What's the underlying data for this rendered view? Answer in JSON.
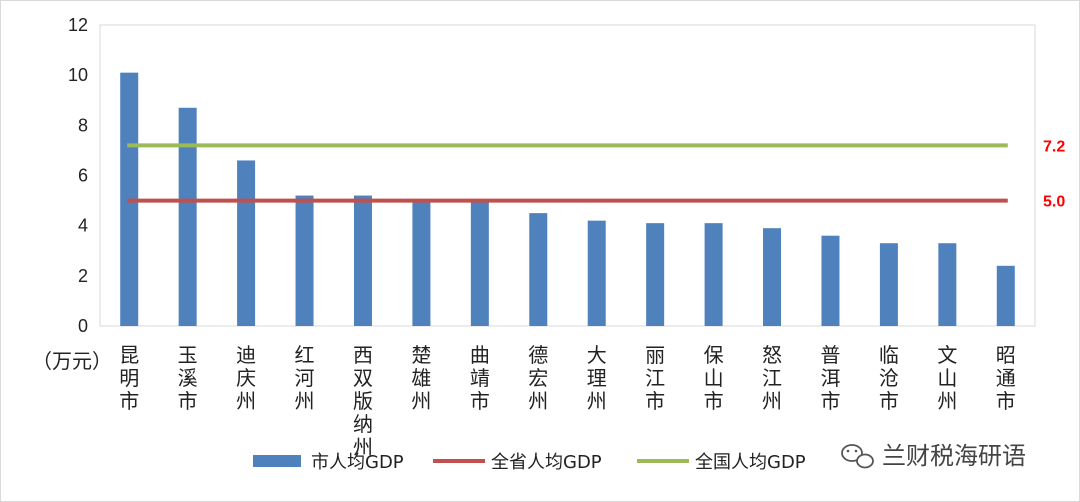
{
  "chart_data": {
    "type": "bar",
    "y_unit": "（万元）",
    "ylim": [
      0,
      12
    ],
    "y_ticks": [
      "0",
      "2",
      "4",
      "6",
      "8",
      "10",
      "12"
    ],
    "grid": false,
    "legend_position": "bottom",
    "categories": [
      "昆明市",
      "玉溪市",
      "迪庆州",
      "红河州",
      "西双版纳州",
      "楚雄州",
      "曲靖市",
      "德宏州",
      "大理州",
      "丽江市",
      "保山市",
      "怒江州",
      "普洱市",
      "临沧市",
      "文山州",
      "昭通市"
    ],
    "series": [
      {
        "name": "市人均GDP",
        "type": "bar",
        "color": "#4f81bd",
        "values": [
          10.1,
          8.7,
          6.6,
          5.2,
          5.2,
          5.0,
          5.0,
          4.5,
          4.2,
          4.1,
          4.1,
          3.9,
          3.6,
          3.3,
          3.3,
          2.4
        ]
      },
      {
        "name": "全省人均GDP",
        "type": "line",
        "color": "#c0504d",
        "value": 5.0,
        "label": "5.0"
      },
      {
        "name": "全国人均GDP",
        "type": "line",
        "color": "#9bbb59",
        "value": 7.2,
        "label": "7.2"
      }
    ],
    "annotation_color": "#ff0000"
  },
  "watermark": {
    "text": "兰财税海研语",
    "icon": "wechat-icon"
  }
}
